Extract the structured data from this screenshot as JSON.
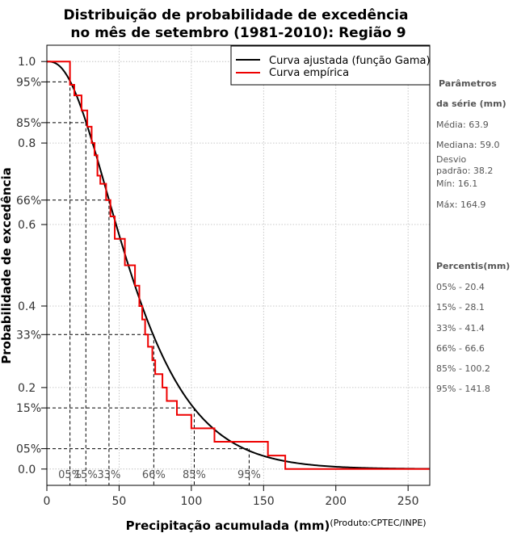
{
  "chart_data": {
    "type": "line",
    "title_line1": "Distribuição de probabilidade de excedência",
    "title_line2": "no mês de setembro (1981-2010): Região 9",
    "xlabel": "Precipitação acumulada (mm)",
    "ylabel": "Probabilidade de excedência",
    "product": "(Produto:CPTEC/INPE)",
    "xlim": [
      0,
      265
    ],
    "ylim": [
      -0.04,
      1.04
    ],
    "x_ticks": [
      0,
      50,
      100,
      150,
      200,
      250
    ],
    "x_tick_labels": [
      "0",
      "50",
      "100",
      "150",
      "200",
      "250"
    ],
    "y_ticks": [
      0.0,
      0.2,
      0.4,
      0.6,
      0.8,
      1.0
    ],
    "y_tick_labels": [
      "0.0",
      "0.2",
      "0.4",
      "0.6",
      "0.8",
      "1.0"
    ],
    "y_pct_ticks": [
      0.95,
      0.85,
      0.66,
      0.33,
      0.15,
      0.05
    ],
    "y_pct_labels": [
      "95%",
      "85%",
      "66%",
      "33%",
      "15%",
      "05%"
    ],
    "grid": true,
    "legend_position": "top-right",
    "series": [
      {
        "name": "Curva ajustada (função Gama)",
        "color": "#000000",
        "shape": 2.8,
        "scale": 22.8,
        "x_max": 265
      },
      {
        "name": "Curva empírica",
        "color": "#ee0000",
        "x": [
          0,
          16,
          16,
          19,
          19,
          24,
          24,
          28,
          28,
          31,
          31,
          33,
          33,
          35,
          35,
          37,
          37,
          41,
          41,
          44,
          44,
          47,
          47,
          54,
          54,
          61,
          61,
          64,
          64,
          66,
          66,
          68,
          68,
          70,
          70,
          73,
          73,
          75,
          75,
          80,
          80,
          83,
          83,
          88,
          88,
          90,
          90,
          100,
          100,
          108,
          108,
          116,
          116,
          128,
          128,
          153,
          153,
          158,
          158,
          165,
          165,
          265
        ],
        "y": [
          1.0,
          1.0,
          0.943,
          0.943,
          0.917,
          0.917,
          0.88,
          0.88,
          0.84,
          0.84,
          0.8,
          0.8,
          0.77,
          0.77,
          0.72,
          0.72,
          0.7,
          0.7,
          0.66,
          0.66,
          0.62,
          0.62,
          0.565,
          0.565,
          0.5,
          0.5,
          0.45,
          0.45,
          0.4,
          0.4,
          0.367,
          0.367,
          0.33,
          0.33,
          0.3,
          0.3,
          0.267,
          0.267,
          0.233,
          0.233,
          0.2,
          0.2,
          0.167,
          0.167,
          0.167,
          0.167,
          0.133,
          0.133,
          0.1,
          0.1,
          0.1,
          0.1,
          0.067,
          0.067,
          0.067,
          0.067,
          0.033,
          0.033,
          0.033,
          0.033,
          0.0,
          0.0
        ]
      }
    ],
    "percentile_guides": [
      {
        "x": 16,
        "y": 0.95,
        "label": "05%"
      },
      {
        "x": 27,
        "y": 0.85,
        "label": "15%"
      },
      {
        "x": 43,
        "y": 0.66,
        "label": "33%"
      },
      {
        "x": 74,
        "y": 0.33,
        "label": "66%"
      },
      {
        "x": 102,
        "y": 0.15,
        "label": "85%"
      },
      {
        "x": 140,
        "y": 0.05,
        "label": "95%"
      }
    ]
  },
  "side_panel": {
    "params_heading_1": "Parâmetros",
    "params_heading_2": "da série (mm)",
    "media": "Média: 63.9",
    "mediana": "Mediana: 59.0",
    "desvio_1": "Desvio",
    "desvio_2": "padrão: 38.2",
    "min": "Mín: 16.1",
    "max": "Máx: 164.9",
    "percentis_heading": "Percentis(mm)",
    "percentis": [
      "05% - 20.4",
      "15% - 28.1",
      "33% - 41.4",
      "66% - 66.6",
      "85% - 100.2",
      "95% - 141.8"
    ]
  }
}
